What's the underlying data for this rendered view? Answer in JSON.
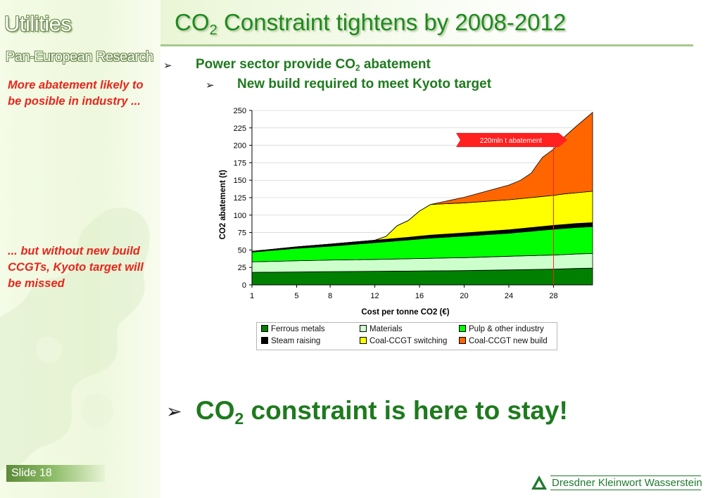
{
  "sidebar": {
    "section_title": "Utilities",
    "section_subtitle": "Pan-European Research",
    "note_top": "More abatement likely to be posible in industry ...",
    "note_bottom": "... but without new build CCGTs, Kyoto target will be missed"
  },
  "slide": {
    "title_prefix": "CO",
    "title_sub": "2",
    "title_suffix": " Constraint tightens by 2008-2012",
    "bullet1_prefix": "Power sector provide CO",
    "bullet1_sub": "2",
    "bullet1_suffix": " abatement",
    "bullet2": "New build required to meet Kyoto target",
    "conclusion_prefix": "CO",
    "conclusion_sub": "2",
    "conclusion_suffix": " constraint is here to stay!",
    "slide_number": "Slide 18",
    "brand": "Dresdner Kleinwort Wasserstein"
  },
  "chart_data": {
    "type": "area",
    "xlabel": "Cost per tonne CO2 (€)",
    "ylabel": "CO2 abatement (t)",
    "x_ticks": [
      "1",
      "5",
      "8",
      "12",
      "16",
      "20",
      "24",
      "28"
    ],
    "x_tick_values": [
      1,
      5,
      8,
      12,
      16,
      20,
      24,
      28
    ],
    "xlim": [
      1,
      31.5
    ],
    "ylim": [
      0,
      250
    ],
    "y_ticks": [
      0,
      25,
      50,
      75,
      100,
      125,
      150,
      175,
      200,
      225,
      250
    ],
    "stacked": true,
    "x": [
      1,
      5,
      8,
      12,
      13,
      14,
      15,
      16,
      17,
      20,
      24,
      25,
      26,
      27,
      28,
      29,
      30,
      31.5
    ],
    "series": [
      {
        "name": "Ferrous metals",
        "color": "#008000",
        "values": [
          18,
          18.5,
          19,
          19.5,
          19.6,
          19.7,
          19.8,
          20,
          20.1,
          20.5,
          21.5,
          21.8,
          22,
          22.3,
          22.5,
          23,
          23.5,
          24
        ]
      },
      {
        "name": "Materials",
        "color": "#ccffcc",
        "values": [
          15,
          16,
          16.5,
          17,
          17.2,
          17.4,
          17.6,
          17.8,
          18,
          18.5,
          19.5,
          19.7,
          19.9,
          20.1,
          20.3,
          20.5,
          20.8,
          21
        ]
      },
      {
        "name": "Pulp & other industry",
        "color": "#00ff00",
        "values": [
          14,
          18,
          20,
          24,
          25,
          26,
          27,
          28,
          29,
          31,
          33,
          34,
          35,
          36,
          37,
          37.5,
          38,
          38.5
        ]
      },
      {
        "name": "Steam raising",
        "color": "#000000",
        "values": [
          1,
          2,
          3,
          3.5,
          3.6,
          3.7,
          3.8,
          4,
          4.2,
          4.5,
          5,
          5,
          5.2,
          5.3,
          5.5,
          5.5,
          5.6,
          5.7
        ]
      },
      {
        "name": "Coal-CCGT switching",
        "color": "#ffff00",
        "values": [
          0,
          0,
          0,
          0,
          4,
          18,
          24,
          36,
          44,
          43,
          43,
          43,
          43,
          43,
          43,
          44,
          44,
          45
        ]
      },
      {
        "name": "Coal-CCGT new build",
        "color": "#ff6600",
        "values": [
          0,
          0,
          0,
          0,
          0,
          0,
          0,
          0,
          0,
          8,
          21,
          26,
          35,
          56,
          66,
          82,
          95,
          113
        ]
      }
    ],
    "annotation": {
      "text": "220mln t abatement",
      "x": 28
    },
    "legend_position": "bottom"
  }
}
